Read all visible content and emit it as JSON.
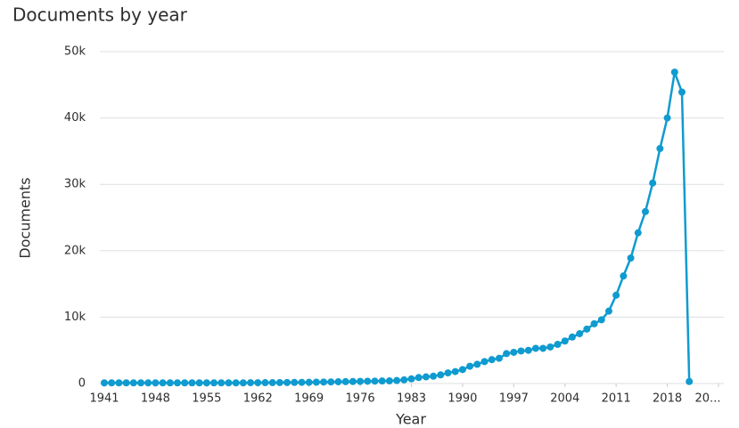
{
  "chart_data": {
    "type": "line",
    "title": "Documents by year",
    "x_label": "Year",
    "y_label": "Documents",
    "x": [
      1941,
      1942,
      1943,
      1944,
      1945,
      1946,
      1947,
      1948,
      1949,
      1950,
      1951,
      1952,
      1953,
      1954,
      1955,
      1956,
      1957,
      1958,
      1959,
      1960,
      1961,
      1962,
      1963,
      1964,
      1965,
      1966,
      1967,
      1968,
      1969,
      1970,
      1971,
      1972,
      1973,
      1974,
      1975,
      1976,
      1977,
      1978,
      1979,
      1980,
      1981,
      1982,
      1983,
      1984,
      1985,
      1986,
      1987,
      1988,
      1989,
      1990,
      1991,
      1992,
      1993,
      1994,
      1995,
      1996,
      1997,
      1998,
      1999,
      2000,
      2001,
      2002,
      2003,
      2004,
      2005,
      2006,
      2007,
      2008,
      2009,
      2010,
      2011,
      2012,
      2013,
      2014,
      2015,
      2016,
      2017,
      2018,
      2019,
      2020,
      2021
    ],
    "series": [
      {
        "color": "#0f9bcf",
        "values": [
          100,
          100,
          100,
          100,
          100,
          100,
          100,
          100,
          100,
          100,
          100,
          100,
          100,
          100,
          100,
          100,
          100,
          100,
          100,
          100,
          120,
          120,
          130,
          130,
          140,
          150,
          160,
          170,
          180,
          200,
          220,
          240,
          260,
          280,
          300,
          320,
          340,
          360,
          380,
          400,
          450,
          550,
          700,
          900,
          1000,
          1100,
          1300,
          1600,
          1800,
          2100,
          2600,
          2900,
          3300,
          3600,
          3800,
          4500,
          4700,
          4900,
          5000,
          5300,
          5300,
          5500,
          5900,
          6400,
          7000,
          7500,
          8200,
          9000,
          9600,
          10900,
          13300,
          16200,
          18900,
          22700,
          25900,
          30200,
          35400,
          40000,
          46900,
          43900,
          300
        ]
      }
    ],
    "xlim": [
      1941,
      2025
    ],
    "xticks": [
      1941,
      1948,
      1955,
      1962,
      1969,
      1976,
      1983,
      1990,
      1997,
      2004,
      2011,
      2018,
      {
        "value": 2025,
        "label": "20..."
      }
    ],
    "ylim": [
      0,
      50000
    ],
    "yticks": [
      0,
      {
        "value": 10000,
        "label": "10k"
      },
      {
        "value": 20000,
        "label": "20k"
      },
      {
        "value": 30000,
        "label": "30k"
      },
      {
        "value": 40000,
        "label": "40k"
      },
      {
        "value": 50000,
        "label": "50k"
      }
    ],
    "grid": true
  }
}
